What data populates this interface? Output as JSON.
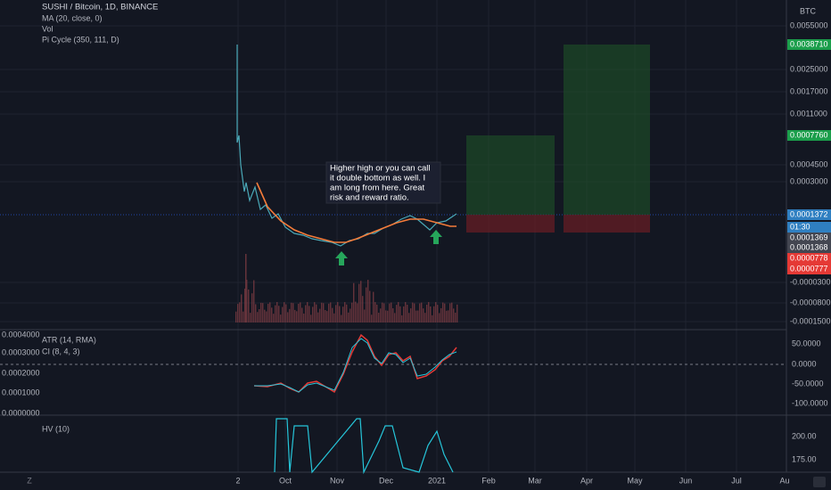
{
  "header": {
    "symbol": "SUSHI / Bitcoin, 1D, BINANCE",
    "indicators": [
      "MA (20, close, 0)",
      "Vol",
      "Pi Cycle (350, 111, D)"
    ],
    "currency": "BTC"
  },
  "annotation": [
    "Higher high or you can call",
    "it double bottom as well. I",
    "am long from here. Great",
    "risk and reward ratio."
  ],
  "price_axis": [
    "0.0055000",
    "0.0038710",
    "0.0025000",
    "0.0017000",
    "0.0011000",
    "0.0007760",
    "0.0004500",
    "0.0003000",
    "0.0001372",
    "01:30",
    "0.0001369",
    "0.0001368",
    "0.0000778",
    "0.0000777",
    "-0.0000300",
    "-0.0000800",
    "-0.0001500"
  ],
  "pane2": {
    "legend": [
      "ATR (14, RMA)",
      "CI (8, 4, 3)"
    ],
    "left_axis": [
      "0.0004000",
      "0.0003000",
      "0.0002000",
      "0.0001000",
      "0.0000000"
    ],
    "right_axis": [
      "50.0000",
      "0.0000",
      "-50.0000",
      "-100.0000"
    ]
  },
  "pane3": {
    "legend": "HV (10)",
    "right_axis": [
      "200.00",
      "175.00"
    ]
  },
  "time_axis": [
    "2",
    "Oct",
    "Nov",
    "Dec",
    "2021",
    "Feb",
    "Mar",
    "Apr",
    "May",
    "Jun",
    "Jul",
    "Au"
  ],
  "corner": "Z"
}
